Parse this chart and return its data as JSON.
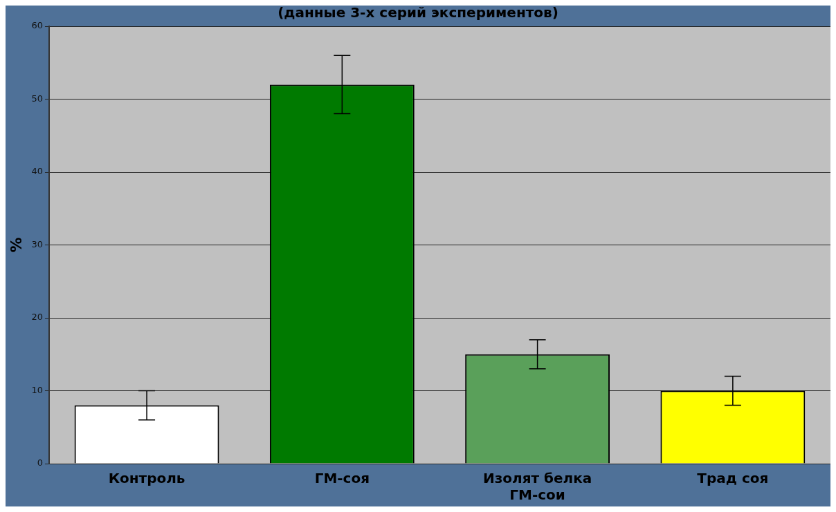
{
  "chart_data": {
    "type": "bar",
    "title": "(данные 3-х серий экспериментов)",
    "ylabel": "%",
    "categories": [
      "Контроль",
      "ГМ-соя",
      "Изолят белка ГМ-сои",
      "Трад соя"
    ],
    "values": [
      8,
      52,
      15,
      10
    ],
    "errors": [
      2,
      4,
      2,
      2
    ],
    "colors": [
      "#ffffff",
      "#007a00",
      "#5aa05a",
      "#ffff00"
    ],
    "ylim": [
      0,
      60
    ],
    "yticks": [
      0,
      10,
      20,
      30,
      40,
      50,
      60
    ],
    "grid": "y",
    "legend": false
  }
}
